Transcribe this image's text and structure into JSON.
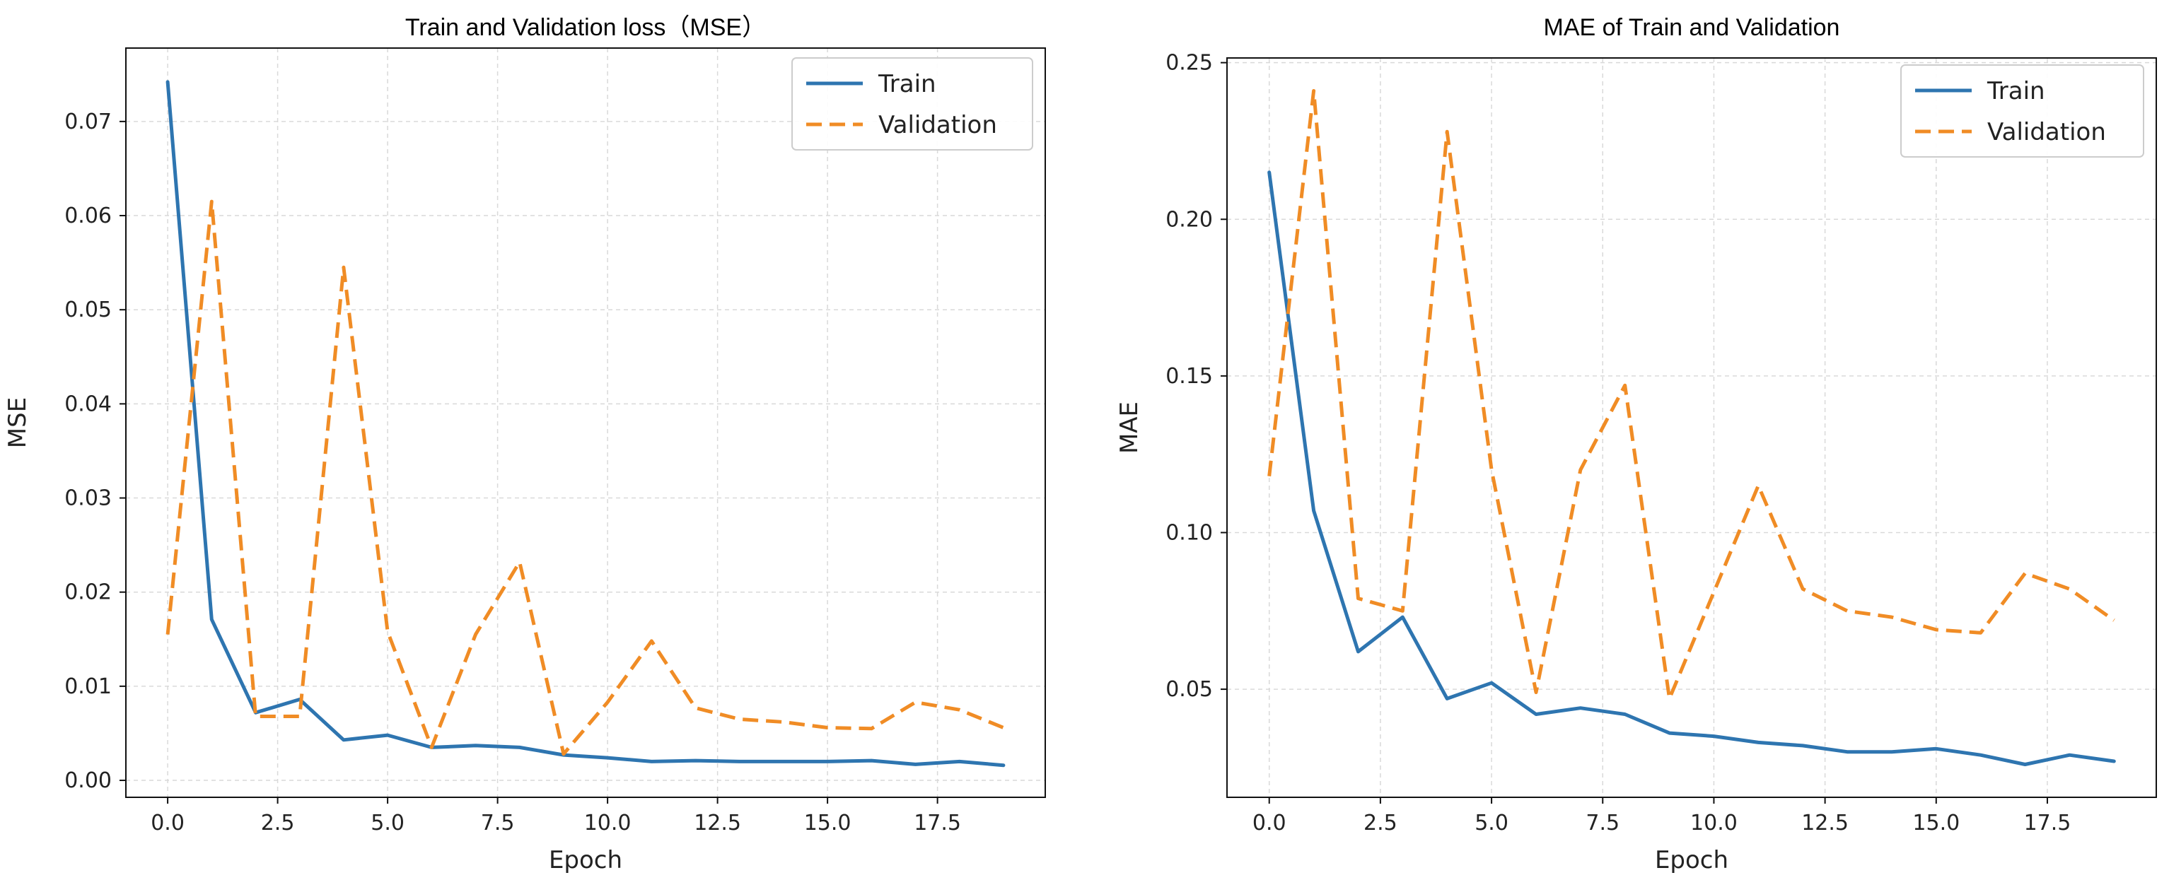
{
  "chart_data": [
    {
      "type": "line",
      "title": "Train and Validation loss（MSE）",
      "xlabel": "Epoch",
      "ylabel": "MSE",
      "xlim": [
        -0.95,
        19.95
      ],
      "ylim": [
        -0.0018,
        0.0778
      ],
      "xticks": [
        0,
        2.5,
        5,
        7.5,
        10,
        12.5,
        15,
        17.5
      ],
      "xtick_labels": [
        "0.0",
        "2.5",
        "5.0",
        "7.5",
        "10.0",
        "12.5",
        "15.0",
        "17.5"
      ],
      "yticks": [
        0,
        0.01,
        0.02,
        0.03,
        0.04,
        0.05,
        0.06,
        0.07
      ],
      "ytick_labels": [
        "0.00",
        "0.01",
        "0.02",
        "0.03",
        "0.04",
        "0.05",
        "0.06",
        "0.07"
      ],
      "grid": true,
      "legend_position": "top-right",
      "x": [
        0,
        1,
        2,
        3,
        4,
        5,
        6,
        7,
        8,
        9,
        10,
        11,
        12,
        13,
        14,
        15,
        16,
        17,
        18,
        19
      ],
      "series": [
        {
          "name": "Train",
          "color": "#2e75b0",
          "style": "solid",
          "values": [
            0.0742,
            0.0171,
            0.0072,
            0.0086,
            0.0043,
            0.0048,
            0.0035,
            0.0037,
            0.0035,
            0.0027,
            0.0024,
            0.002,
            0.0021,
            0.002,
            0.002,
            0.002,
            0.0021,
            0.0017,
            0.002,
            0.0016
          ]
        },
        {
          "name": "Validation",
          "color": "#f08c25",
          "style": "dashed",
          "values": [
            0.0155,
            0.0615,
            0.0068,
            0.0068,
            0.0545,
            0.0158,
            0.0035,
            0.0155,
            0.0232,
            0.0028,
            0.0083,
            0.0148,
            0.0077,
            0.0065,
            0.0062,
            0.0056,
            0.0055,
            0.0083,
            0.0075,
            0.0056
          ]
        }
      ]
    },
    {
      "type": "line",
      "title": "MAE of Train and Validation",
      "xlabel": "Epoch",
      "ylabel": "MAE",
      "xlim": [
        -0.95,
        19.95
      ],
      "ylim": [
        0.0155,
        0.2515
      ],
      "xticks": [
        0,
        2.5,
        5,
        7.5,
        10,
        12.5,
        15,
        17.5
      ],
      "xtick_labels": [
        "0.0",
        "2.5",
        "5.0",
        "7.5",
        "10.0",
        "12.5",
        "15.0",
        "17.5"
      ],
      "yticks": [
        0.05,
        0.1,
        0.15,
        0.2,
        0.25
      ],
      "ytick_labels": [
        "0.05",
        "0.10",
        "0.15",
        "0.20",
        "0.25"
      ],
      "grid": true,
      "legend_position": "top-right",
      "x": [
        0,
        1,
        2,
        3,
        4,
        5,
        6,
        7,
        8,
        9,
        10,
        11,
        12,
        13,
        14,
        15,
        16,
        17,
        18,
        19
      ],
      "series": [
        {
          "name": "Train",
          "color": "#2e75b0",
          "style": "solid",
          "values": [
            0.215,
            0.107,
            0.062,
            0.073,
            0.047,
            0.052,
            0.042,
            0.044,
            0.042,
            0.036,
            0.035,
            0.033,
            0.032,
            0.03,
            0.03,
            0.031,
            0.029,
            0.026,
            0.029,
            0.027
          ]
        },
        {
          "name": "Validation",
          "color": "#f08c25",
          "style": "dashed",
          "values": [
            0.118,
            0.241,
            0.079,
            0.075,
            0.228,
            0.12,
            0.049,
            0.12,
            0.147,
            0.047,
            0.081,
            0.115,
            0.082,
            0.075,
            0.073,
            0.069,
            0.068,
            0.087,
            0.082,
            0.072
          ]
        }
      ]
    }
  ]
}
